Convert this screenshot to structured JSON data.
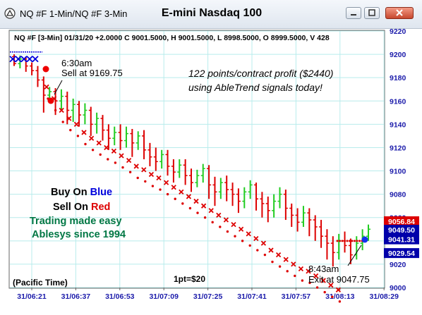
{
  "window": {
    "title": "NQ #F 1-Min/NQ #F 3-Min",
    "chart_title": "E-mini Nasdaq 100"
  },
  "colors": {
    "up_bar": "#22cc22",
    "down_bar": "#dd0000",
    "sell_marker": "#dd0000",
    "buy_marker": "#0000dd",
    "grid": "#b8ecec",
    "axis_text": "#1a1aaa",
    "tag_red": "#dd0000",
    "tag_blue": "#0000aa",
    "ad_green": "#007744"
  },
  "chart_data": {
    "type": "candlestick",
    "info_line": "NQ #F [3-Min] 01/31/20  +2.0000 C 9001.5000, H 9001.5000, L 8998.5000, O 8999.5000, V 428",
    "x_tick_labels": [
      "31/06:21",
      "31/06:37",
      "31/06:53",
      "31/07:09",
      "31/07:25",
      "31/07:41",
      "31/07:57",
      "31/08:13",
      "31/08:29"
    ],
    "y_range": [
      9000,
      9220
    ],
    "y_ticks": [
      9000,
      9020,
      9040,
      9060,
      9080,
      9100,
      9120,
      9140,
      9160,
      9180,
      9200,
      9220
    ],
    "grid": true,
    "price_tags": [
      {
        "text": "9056.84",
        "value": 9056.84,
        "color": "red"
      },
      {
        "text": "9049.50",
        "value": 9049.5,
        "color": "blue"
      },
      {
        "text": "9041.31",
        "value": 9041.31,
        "color": "blue"
      },
      {
        "text": "9029.54",
        "value": 9029.54,
        "color": "blue"
      }
    ],
    "bars": [
      [
        9198,
        9192,
        9200,
        9190
      ],
      [
        9192,
        9196,
        9199,
        9188
      ],
      [
        9196,
        9190,
        9198,
        9185
      ],
      [
        9190,
        9186,
        9193,
        9182
      ],
      [
        9186,
        9178,
        9190,
        9172
      ],
      [
        9178,
        9165,
        9181,
        9150
      ],
      [
        9165,
        9168,
        9172,
        9158
      ],
      [
        9168,
        9160,
        9171,
        9148
      ],
      [
        9160,
        9164,
        9170,
        9152
      ],
      [
        9164,
        9152,
        9168,
        9140
      ],
      [
        9152,
        9157,
        9162,
        9142
      ],
      [
        9157,
        9148,
        9160,
        9138
      ],
      [
        9148,
        9152,
        9158,
        9140
      ],
      [
        9152,
        9140,
        9155,
        9130
      ],
      [
        9140,
        9145,
        9150,
        9132
      ],
      [
        9145,
        9135,
        9148,
        9126
      ],
      [
        9135,
        9128,
        9140,
        9118
      ],
      [
        9128,
        9133,
        9138,
        9122
      ],
      [
        9133,
        9126,
        9140,
        9118
      ],
      [
        9126,
        9132,
        9138,
        9120
      ],
      [
        9132,
        9124,
        9136,
        9112
      ],
      [
        9124,
        9130,
        9134,
        9118
      ],
      [
        9130,
        9118,
        9135,
        9110
      ],
      [
        9118,
        9112,
        9124,
        9104
      ],
      [
        9112,
        9108,
        9120,
        9100
      ],
      [
        9108,
        9114,
        9118,
        9102
      ],
      [
        9114,
        9104,
        9118,
        9096
      ],
      [
        9104,
        9099,
        9110,
        9090
      ],
      [
        9099,
        9105,
        9110,
        9094
      ],
      [
        9105,
        9096,
        9110,
        9088
      ],
      [
        9096,
        9090,
        9102,
        9082
      ],
      [
        9090,
        9096,
        9101,
        9086
      ],
      [
        9096,
        9102,
        9106,
        9090
      ],
      [
        9102,
        9088,
        9105,
        9076
      ],
      [
        9088,
        9082,
        9095,
        9070
      ],
      [
        9082,
        9090,
        9094,
        9076
      ],
      [
        9090,
        9084,
        9096,
        9074
      ],
      [
        9084,
        9080,
        9090,
        9070
      ],
      [
        9080,
        9074,
        9085,
        9064
      ],
      [
        9074,
        9082,
        9086,
        9068
      ],
      [
        9082,
        9088,
        9092,
        9076
      ],
      [
        9088,
        9076,
        9090,
        9066
      ],
      [
        9076,
        9072,
        9082,
        9060
      ],
      [
        9072,
        9066,
        9078,
        9056
      ],
      [
        9066,
        9074,
        9080,
        9060
      ],
      [
        9074,
        9080,
        9086,
        9068
      ],
      [
        9080,
        9068,
        9084,
        9058
      ],
      [
        9068,
        9062,
        9072,
        9052
      ],
      [
        9062,
        9056,
        9068,
        9048
      ],
      [
        9056,
        9064,
        9070,
        9052
      ],
      [
        9064,
        9058,
        9068,
        9044
      ],
      [
        9058,
        9052,
        9062,
        9040
      ],
      [
        9052,
        9044,
        9058,
        9034
      ],
      [
        9044,
        9038,
        9050,
        9024
      ],
      [
        9038,
        9030,
        9044,
        9018
      ],
      [
        9030,
        9040,
        9046,
        9024
      ],
      [
        9040,
        9036,
        9048,
        9030
      ],
      [
        9036,
        9028,
        9042,
        9020
      ],
      [
        9028,
        9038,
        9044,
        9024
      ],
      [
        9038,
        9044,
        9050,
        9032
      ],
      [
        9044,
        9050,
        9054,
        9040
      ]
    ],
    "sell_markers": [
      [
        6,
        9172
      ],
      [
        8,
        9162
      ],
      [
        10,
        9152
      ],
      [
        12,
        9145
      ],
      [
        14,
        9140
      ],
      [
        16,
        9133
      ],
      [
        18,
        9128
      ],
      [
        20,
        9124
      ],
      [
        22,
        9120
      ],
      [
        24,
        9117
      ],
      [
        26,
        9113
      ],
      [
        28,
        9109
      ],
      [
        30,
        9104
      ],
      [
        32,
        9101
      ],
      [
        34,
        9097
      ],
      [
        36,
        9094
      ],
      [
        38,
        9090
      ],
      [
        40,
        9086
      ],
      [
        42,
        9082
      ],
      [
        44,
        9078
      ],
      [
        46,
        9074
      ],
      [
        48,
        9070
      ],
      [
        50,
        9066
      ],
      [
        52,
        9062
      ],
      [
        54,
        9058
      ],
      [
        56,
        9054
      ],
      [
        58,
        9050
      ],
      [
        60,
        9046
      ],
      [
        62,
        9042
      ],
      [
        64,
        9038
      ],
      [
        66,
        9032
      ],
      [
        68,
        9028
      ],
      [
        70,
        9024
      ],
      [
        72,
        9020
      ],
      [
        74,
        9016
      ],
      [
        76,
        9014
      ],
      [
        78,
        9010
      ],
      [
        80,
        9006
      ],
      [
        82,
        9002
      ],
      [
        84,
        8998
      ]
    ]
  },
  "annotations": {
    "sell_time": "6:30am",
    "sell_text": "Sell at 9169.75",
    "profit_line1": "122 points/contract profit ($2440)",
    "profit_line2": "using AbleTrend signals today!",
    "buy_word": "Buy On ",
    "buy_color_word": "Blue",
    "sell_word": "Sell On ",
    "sell_color_word": "Red",
    "ad_line1": "Trading made easy",
    "ad_line2": "Ablesys since 1994",
    "exit_time": "8:43am",
    "exit_text": "Exit at 9047.75",
    "timezone": "(Pacific Time)",
    "point_value": "1pt=$20"
  }
}
